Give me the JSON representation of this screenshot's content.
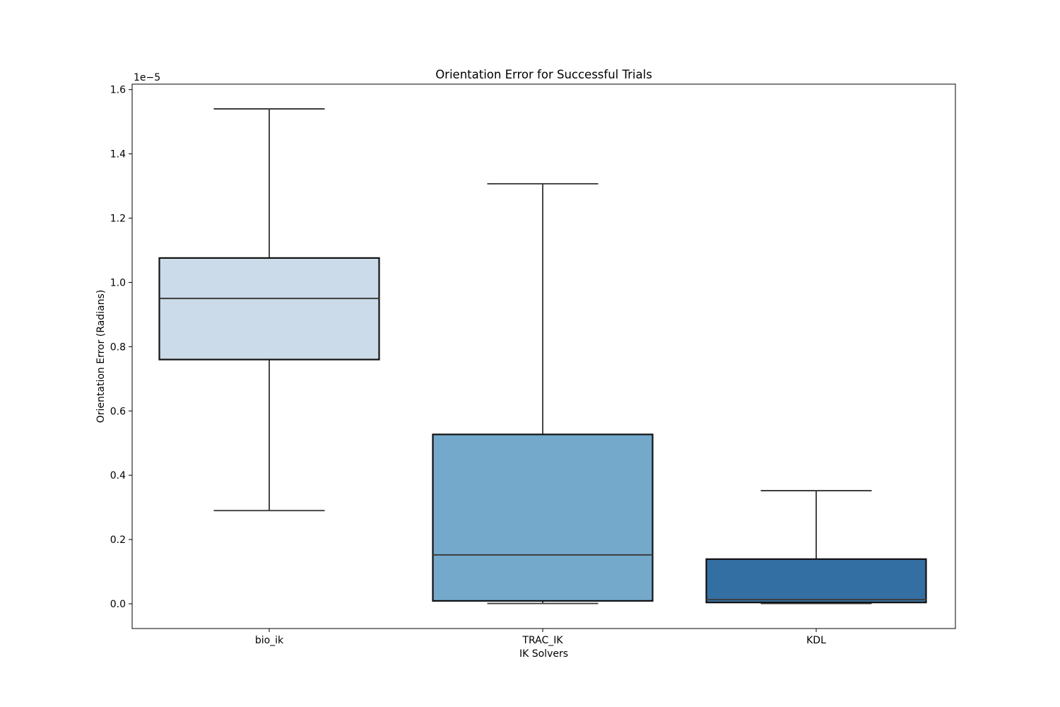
{
  "figure": {
    "background_color": "#ffffff"
  },
  "chart_data": {
    "type": "boxplot",
    "title": "Orientation Error for Successful Trials",
    "xlabel": "IK Solvers",
    "ylabel": "Orientation Error (Radians)",
    "offset_text": "1e−5",
    "y_scale_factor": 1e-05,
    "categories": [
      "bio_ik",
      "TRAC_IK",
      "KDL"
    ],
    "yticks": [
      "0.0",
      "0.2",
      "0.4",
      "0.6",
      "0.8",
      "1.0",
      "1.2",
      "1.4",
      "1.6"
    ],
    "ylim": [
      -0.077,
      1.617
    ],
    "grid": false,
    "legend": null,
    "series": [
      {
        "name": "bio_ik",
        "whislo": 0.29,
        "q1": 0.76,
        "med": 0.95,
        "q3": 1.076,
        "whishi": 1.54,
        "fill_color": "#ccdbea"
      },
      {
        "name": "TRAC_IK",
        "whislo": 0.001,
        "q1": 0.009,
        "med": 0.152,
        "q3": 0.527,
        "whishi": 1.307,
        "fill_color": "#74a9cc"
      },
      {
        "name": "KDL",
        "whislo": 0.001,
        "q1": 0.004,
        "med": 0.013,
        "q3": 0.139,
        "whishi": 0.352,
        "fill_color": "#346fa3"
      }
    ],
    "box_edge_color": "#111111",
    "whisker_color": "#3d3d3d",
    "median_color": "#3d3d3d",
    "spine_color": "#000000",
    "tick_color": "#000000"
  }
}
